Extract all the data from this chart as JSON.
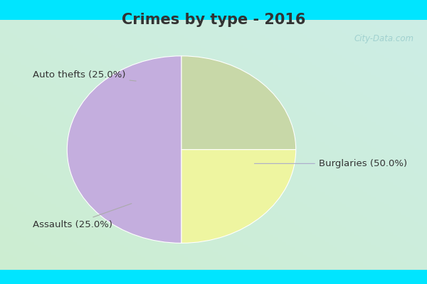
{
  "title": "Crimes by type - 2016",
  "slices": [
    {
      "label": "Burglaries (50.0%)",
      "value": 50.0,
      "color": "#c4aede"
    },
    {
      "label": "Auto thefts (25.0%)",
      "value": 25.0,
      "color": "#eef5a0"
    },
    {
      "label": "Assaults (25.0%)",
      "value": 25.0,
      "color": "#c8d8a8"
    }
  ],
  "start_angle": 90,
  "bg_cyan": "#00e5ff",
  "bg_gradient_top": "#b8eeee",
  "bg_gradient_bottom": "#c8eedd",
  "title_fontsize": 15,
  "label_fontsize": 9.5,
  "watermark": "City-Data.com",
  "title_color": "#333333"
}
